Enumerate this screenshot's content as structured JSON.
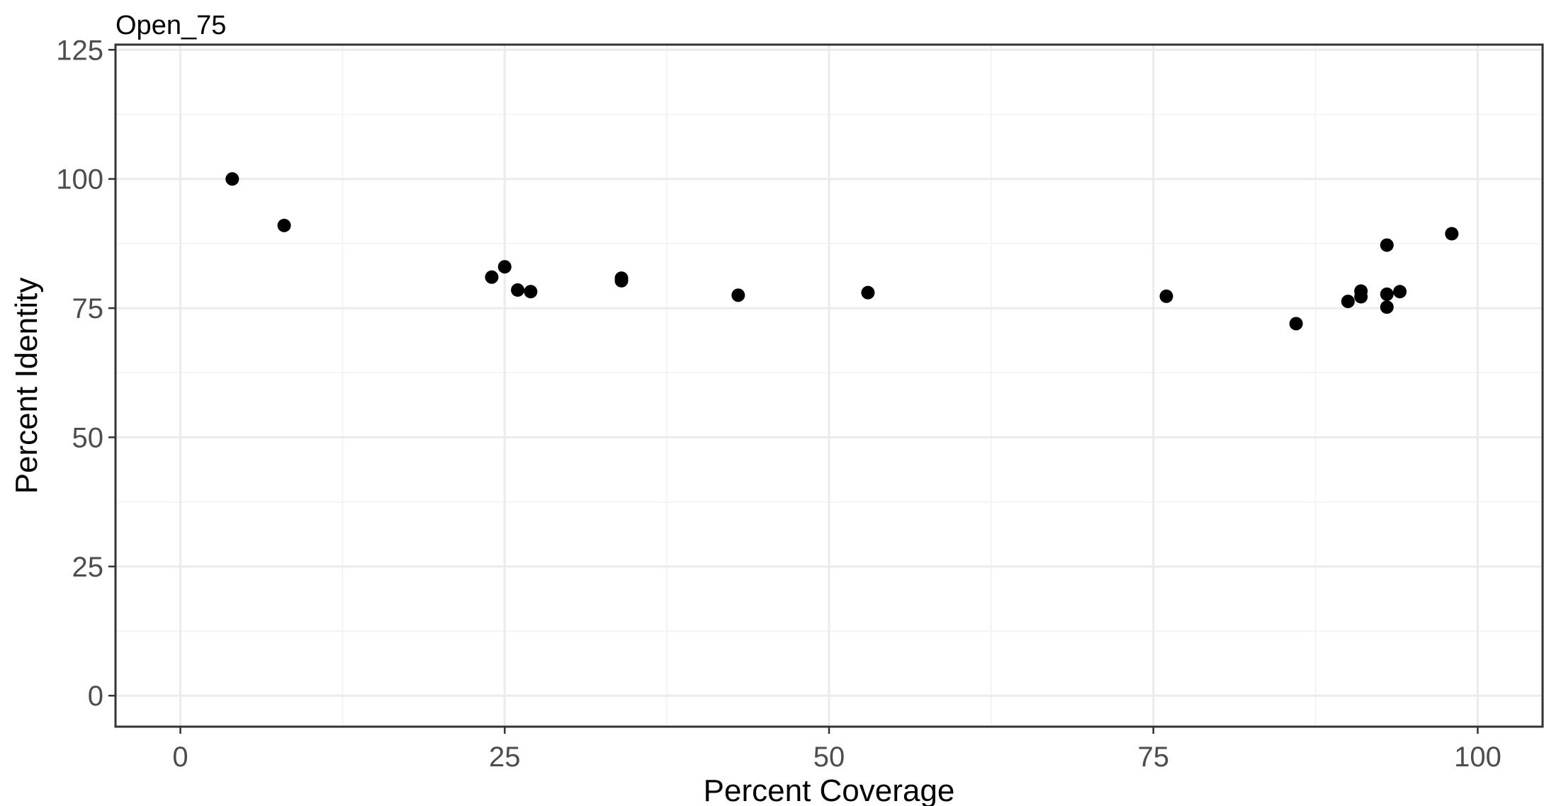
{
  "chart_data": {
    "type": "scatter",
    "title": "Open_75",
    "xlabel": "Percent Coverage",
    "ylabel": "Percent Identity",
    "xlim": [
      -5,
      105
    ],
    "ylim": [
      -6,
      126
    ],
    "xticks": [
      0,
      25,
      50,
      75,
      100
    ],
    "yticks": [
      0,
      25,
      50,
      75,
      100,
      125
    ],
    "xtick_labels": [
      "0",
      "25",
      "50",
      "75",
      "100"
    ],
    "ytick_labels": [
      "0",
      "25",
      "50",
      "75",
      "100",
      "125"
    ],
    "grid": true,
    "point_color": "#000000",
    "points": [
      {
        "x": 4,
        "y": 100
      },
      {
        "x": 8,
        "y": 91
      },
      {
        "x": 24,
        "y": 81
      },
      {
        "x": 25,
        "y": 83
      },
      {
        "x": 26,
        "y": 78.5
      },
      {
        "x": 27,
        "y": 78.2
      },
      {
        "x": 34,
        "y": 80.8
      },
      {
        "x": 34,
        "y": 80.3
      },
      {
        "x": 43,
        "y": 77.5
      },
      {
        "x": 53,
        "y": 78
      },
      {
        "x": 76,
        "y": 77.3
      },
      {
        "x": 86,
        "y": 72
      },
      {
        "x": 90,
        "y": 76.3
      },
      {
        "x": 91,
        "y": 77.2
      },
      {
        "x": 91,
        "y": 78.3
      },
      {
        "x": 93,
        "y": 87.2
      },
      {
        "x": 93,
        "y": 77.7
      },
      {
        "x": 93,
        "y": 75.2
      },
      {
        "x": 94,
        "y": 78.2
      },
      {
        "x": 98,
        "y": 89.4
      }
    ]
  }
}
